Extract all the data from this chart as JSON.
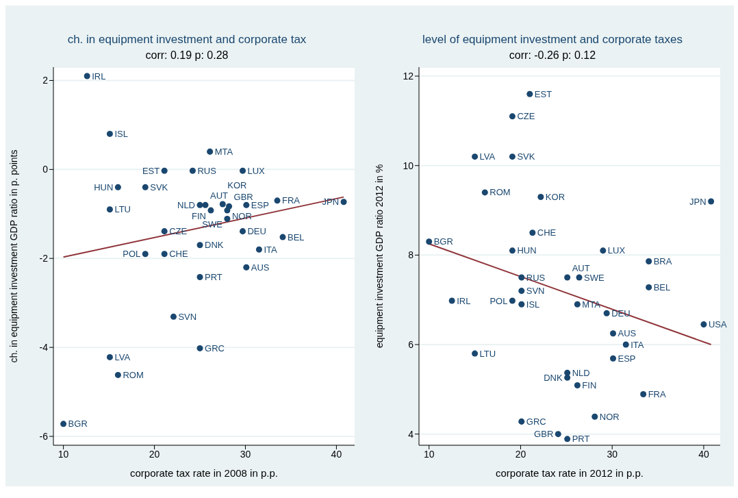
{
  "chart_data": [
    {
      "type": "scatter",
      "title": "ch. in equipment investment and corporate  tax",
      "subtitle": "corr: 0.19  p: 0.28",
      "xlabel": "corporate tax rate in 2008 in p.p.",
      "ylabel": "ch. in equipment investment GDP ratio in p. points",
      "xlim": [
        8.9,
        42
      ],
      "ylim": [
        -6.2,
        2.3
      ],
      "xticks": [
        10,
        20,
        30,
        40
      ],
      "yticks": [
        -6,
        -4,
        -2,
        0,
        2
      ],
      "grid": "y",
      "series": [
        {
          "marker": "circle",
          "color": "#1a476f",
          "x": [
            12.6,
            15.1,
            26.1,
            21.1,
            24.2,
            29.7,
            16.0,
            19.0,
            15.1,
            33.5,
            40.8,
            25.0,
            25.6,
            27.5,
            28.2,
            30.1,
            26.2,
            28.0,
            28.0,
            21.1,
            29.7,
            34.1,
            25.0,
            31.5,
            19.0,
            21.1,
            30.1,
            25.0,
            22.1,
            25.0,
            15.1,
            16.0,
            10.0
          ],
          "values": [
            2.1,
            0.8,
            0.4,
            -0.03,
            -0.03,
            -0.03,
            -0.4,
            -0.4,
            -0.9,
            -0.7,
            -0.73,
            -0.8,
            -0.8,
            -0.78,
            -0.83,
            -0.8,
            -0.92,
            -0.92,
            -1.11,
            -1.39,
            -1.39,
            -1.52,
            -1.7,
            -1.8,
            -1.9,
            -1.9,
            -2.2,
            -2.42,
            -3.31,
            -4.02,
            -4.22,
            -4.62,
            -5.72
          ]
        },
        {
          "type": "line",
          "marker": "none",
          "color": "#90353b",
          "x": [
            10,
            40.8
          ],
          "values": [
            -1.97,
            -0.62
          ]
        }
      ],
      "annotations": [
        {
          "text": "IRL",
          "x": 12.6,
          "y": 2.1
        },
        {
          "text": "ISL",
          "x": 15.1,
          "y": 0.8
        },
        {
          "text": "MTA",
          "x": 26.1,
          "y": 0.4
        },
        {
          "text": "EST",
          "x": 21.1,
          "y": -0.03
        },
        {
          "text": "RUS",
          "x": 24.2,
          "y": -0.03
        },
        {
          "text": "LUX",
          "x": 29.7,
          "y": -0.03
        },
        {
          "text": "HUN",
          "x": 16.0,
          "y": -0.4
        },
        {
          "text": "SVK",
          "x": 19.0,
          "y": -0.4
        },
        {
          "text": "LTU",
          "x": 15.1,
          "y": -0.9
        },
        {
          "text": "FRA",
          "x": 33.5,
          "y": -0.7
        },
        {
          "text": "JPN",
          "x": 40.8,
          "y": -0.73
        },
        {
          "text": "NLD",
          "x": 25.0,
          "y": -0.8
        },
        {
          "text": "AUT",
          "x": 25.6,
          "y": -0.8
        },
        {
          "text": "KOR",
          "x": 27.5,
          "y": -0.78
        },
        {
          "text": "GBR",
          "x": 28.2,
          "y": -0.83
        },
        {
          "text": "ESP",
          "x": 30.1,
          "y": -0.8
        },
        {
          "text": "FIN",
          "x": 26.2,
          "y": -0.92
        },
        {
          "text": "NOR",
          "x": 28.0,
          "y": -0.92
        },
        {
          "text": "SWE",
          "x": 28.0,
          "y": -1.11
        },
        {
          "text": "CZE",
          "x": 21.1,
          "y": -1.39
        },
        {
          "text": "DEU",
          "x": 29.7,
          "y": -1.39
        },
        {
          "text": "BEL",
          "x": 34.1,
          "y": -1.52
        },
        {
          "text": "DNK",
          "x": 25.0,
          "y": -1.7
        },
        {
          "text": "ITA",
          "x": 31.5,
          "y": -1.8
        },
        {
          "text": "POL",
          "x": 19.0,
          "y": -1.9
        },
        {
          "text": "CHE",
          "x": 21.1,
          "y": -1.9
        },
        {
          "text": "AUS",
          "x": 30.1,
          "y": -2.2
        },
        {
          "text": "PRT",
          "x": 25.0,
          "y": -2.42
        },
        {
          "text": "SVN",
          "x": 22.1,
          "y": -3.31
        },
        {
          "text": "GRC",
          "x": 25.0,
          "y": -4.02
        },
        {
          "text": "LVA",
          "x": 15.1,
          "y": -4.22
        },
        {
          "text": "ROM",
          "x": 16.0,
          "y": -4.62
        },
        {
          "text": "BGR",
          "x": 10.0,
          "y": -5.72
        }
      ]
    },
    {
      "type": "scatter",
      "title": "level of equipment investment and corporate taxes",
      "subtitle": "corr: -0.26  p: 0.12",
      "xlabel": "corporate tax rate in 2012 in p.p.",
      "ylabel": "equipment investment GDP ratio 2012 in %",
      "xlim": [
        8.9,
        41.8
      ],
      "ylim": [
        3.75,
        12.2
      ],
      "xticks": [
        10,
        20,
        30,
        40
      ],
      "yticks": [
        4,
        6,
        8,
        10,
        12
      ],
      "grid": "y",
      "series": [
        {
          "marker": "circle",
          "color": "#1a476f",
          "x": [
            21.0,
            19.1,
            15.0,
            19.1,
            16.1,
            22.2,
            40.8,
            21.3,
            10.0,
            19.1,
            29.0,
            34.0,
            20.1,
            25.1,
            26.4,
            34.0,
            20.1,
            12.5,
            19.1,
            20.1,
            26.2,
            29.4,
            40.0,
            30.1,
            31.5,
            15.0,
            30.1,
            25.1,
            25.1,
            26.2,
            33.4,
            28.1,
            20.1,
            24.1,
            25.1
          ],
          "values": [
            11.6,
            11.1,
            10.2,
            10.2,
            9.4,
            9.3,
            9.2,
            8.5,
            8.3,
            8.1,
            8.1,
            7.86,
            7.5,
            7.5,
            7.5,
            7.28,
            7.2,
            6.98,
            6.98,
            6.9,
            6.9,
            6.7,
            6.45,
            6.25,
            6.0,
            5.8,
            5.69,
            5.37,
            5.26,
            5.09,
            4.89,
            4.39,
            4.28,
            4.0,
            3.89
          ]
        },
        {
          "type": "line",
          "marker": "none",
          "color": "#90353b",
          "x": [
            10,
            40.8
          ],
          "values": [
            8.25,
            6.0
          ]
        }
      ],
      "annotations": [
        {
          "text": "EST",
          "x": 21.0,
          "y": 11.6
        },
        {
          "text": "CZE",
          "x": 19.1,
          "y": 11.1
        },
        {
          "text": "LVA",
          "x": 15.0,
          "y": 10.2
        },
        {
          "text": "SVK",
          "x": 19.1,
          "y": 10.2
        },
        {
          "text": "ROM",
          "x": 16.1,
          "y": 9.4
        },
        {
          "text": "KOR",
          "x": 22.2,
          "y": 9.3
        },
        {
          "text": "JPN",
          "x": 40.8,
          "y": 9.2
        },
        {
          "text": "CHE",
          "x": 21.3,
          "y": 8.5
        },
        {
          "text": "BGR",
          "x": 10.0,
          "y": 8.3
        },
        {
          "text": "HUN",
          "x": 19.1,
          "y": 8.1
        },
        {
          "text": "LUX",
          "x": 29.0,
          "y": 8.1
        },
        {
          "text": "BRA",
          "x": 34.0,
          "y": 7.86
        },
        {
          "text": "RUS",
          "x": 20.1,
          "y": 7.5
        },
        {
          "text": "AUT",
          "x": 25.1,
          "y": 7.5
        },
        {
          "text": "SWE",
          "x": 26.4,
          "y": 7.5
        },
        {
          "text": "BEL",
          "x": 34.0,
          "y": 7.28
        },
        {
          "text": "SVN",
          "x": 20.1,
          "y": 7.2
        },
        {
          "text": "IRL",
          "x": 12.5,
          "y": 6.98
        },
        {
          "text": "POL",
          "x": 19.1,
          "y": 6.98
        },
        {
          "text": "ISL",
          "x": 20.1,
          "y": 6.9
        },
        {
          "text": "MTA",
          "x": 26.2,
          "y": 6.9
        },
        {
          "text": "DEU",
          "x": 29.4,
          "y": 6.7
        },
        {
          "text": "USA",
          "x": 40.0,
          "y": 6.45
        },
        {
          "text": "AUS",
          "x": 30.1,
          "y": 6.25
        },
        {
          "text": "ITA",
          "x": 31.5,
          "y": 6.0
        },
        {
          "text": "LTU",
          "x": 15.0,
          "y": 5.8
        },
        {
          "text": "ESP",
          "x": 30.1,
          "y": 5.69
        },
        {
          "text": "NLD",
          "x": 25.1,
          "y": 5.37
        },
        {
          "text": "DNK",
          "x": 25.1,
          "y": 5.26
        },
        {
          "text": "FIN",
          "x": 26.2,
          "y": 5.09
        },
        {
          "text": "FRA",
          "x": 33.4,
          "y": 4.89
        },
        {
          "text": "NOR",
          "x": 28.1,
          "y": 4.39
        },
        {
          "text": "GRC",
          "x": 20.1,
          "y": 4.28
        },
        {
          "text": "GBR",
          "x": 24.1,
          "y": 4.0
        },
        {
          "text": "PRT",
          "x": 25.1,
          "y": 3.89
        }
      ]
    }
  ]
}
